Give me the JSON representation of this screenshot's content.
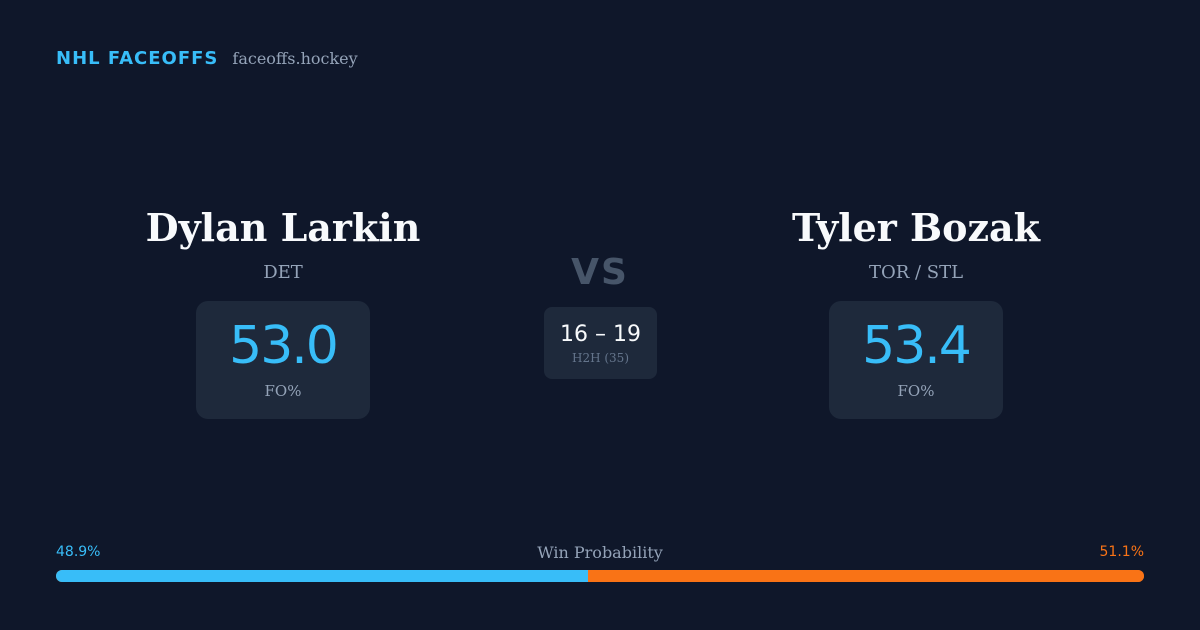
{
  "brand": {
    "title": "NHL FACEOFFS",
    "url": "faceoffs.hockey"
  },
  "player_left": {
    "name": "Dylan Larkin",
    "team": "DET",
    "stat_value": "53.0",
    "stat_label": "FO%"
  },
  "player_right": {
    "name": "Tyler Bozak",
    "team": "TOR / STL",
    "stat_value": "53.4",
    "stat_label": "FO%"
  },
  "matchup": {
    "vs_label": "VS",
    "h2h_score": "16 – 19",
    "h2h_label": "H2H (35)"
  },
  "win_probability": {
    "title": "Win Probability",
    "left_label": "48.9%",
    "right_label": "51.1%",
    "left_fraction": 0.489,
    "right_fraction": 0.511,
    "left_color": "#38bdf8",
    "right_color": "#f97316"
  }
}
